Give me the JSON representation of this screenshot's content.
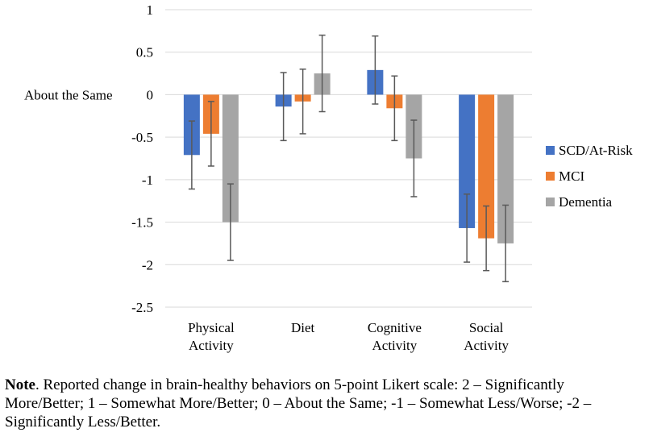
{
  "chart_data": {
    "type": "bar",
    "title": "",
    "xlabel": "",
    "ylabel": "",
    "ylim": [
      -2.5,
      1
    ],
    "yticks": [
      "1",
      "0.5",
      "0",
      "-0.5",
      "-1",
      "-1.5",
      "-2",
      "-2.5"
    ],
    "ytick_values": [
      1,
      0.5,
      0,
      -0.5,
      -1,
      -1.5,
      -2,
      -2.5
    ],
    "zero_annotation": "About the Same",
    "grid": true,
    "legend_position": "right",
    "categories": [
      [
        "Physical",
        "Activity"
      ],
      [
        "Diet"
      ],
      [
        "Cognitive",
        "Activity"
      ],
      [
        "Social",
        "Activity"
      ]
    ],
    "series": [
      {
        "name": "SCD/At-Risk",
        "color": "#4472C4",
        "values": [
          -0.71,
          -0.14,
          0.29,
          -1.57
        ],
        "err_low": [
          -1.11,
          -0.54,
          -0.11,
          -1.97
        ],
        "err_high": [
          -0.31,
          0.26,
          0.69,
          -1.17
        ]
      },
      {
        "name": "MCI",
        "color": "#ED7D31",
        "values": [
          -0.46,
          -0.08,
          -0.16,
          -1.69
        ],
        "err_low": [
          -0.84,
          -0.46,
          -0.54,
          -2.07
        ],
        "err_high": [
          -0.08,
          0.3,
          0.22,
          -1.31
        ]
      },
      {
        "name": "Dementia",
        "color": "#A5A5A5",
        "values": [
          -1.5,
          0.25,
          -0.75,
          -1.75
        ],
        "err_low": [
          -1.95,
          -0.2,
          -1.2,
          -2.2
        ],
        "err_high": [
          -1.05,
          0.7,
          -0.3,
          -1.3
        ]
      }
    ]
  },
  "note": {
    "label": "Note",
    "text": ". Reported change in brain-healthy behaviors on 5-point Likert scale: 2 – Significantly More/Better; 1 – Somewhat More/Better; 0 – About the Same; -1 – Somewhat Less/Worse; -2 – Significantly Less/Better."
  }
}
